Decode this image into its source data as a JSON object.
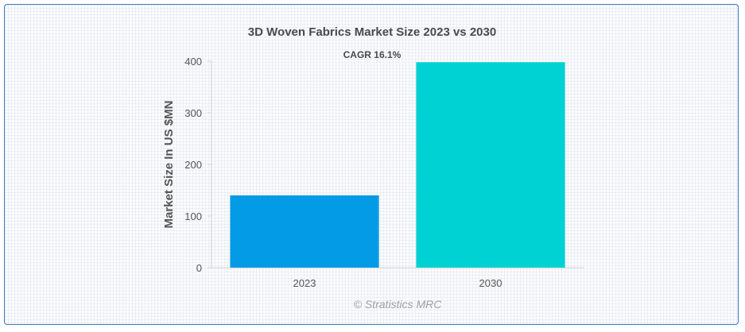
{
  "chart_data": {
    "type": "bar",
    "title": "3D Woven Fabrics Market Size 2023 vs 2030",
    "annotation": "CAGR 16.1%",
    "ylabel": "Market Size In US $MN",
    "xlabel": "",
    "categories": [
      "2023",
      "2030"
    ],
    "values": [
      140,
      398
    ],
    "ylim": [
      0,
      400
    ],
    "yticks": [
      "0",
      "100",
      "200",
      "300",
      "400"
    ],
    "bar_colors": [
      "#039be5",
      "#00d2d3"
    ],
    "grid": false,
    "legend": "none"
  },
  "credit": "© Stratistics MRC"
}
